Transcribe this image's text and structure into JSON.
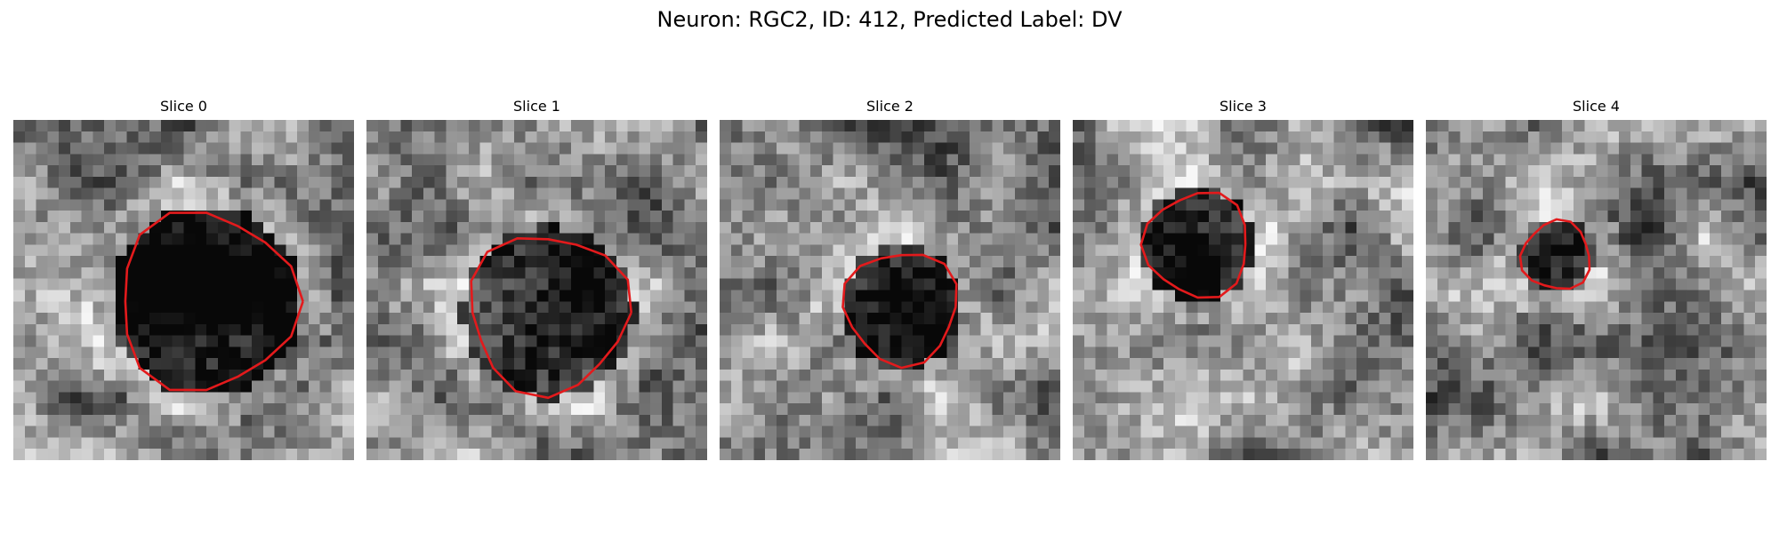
{
  "figure": {
    "title": "Neuron: RGC2, ID: 412, Predicted Label: DV",
    "colormap": "gray",
    "contour_color": "#e31a1c",
    "grid_size": 30
  },
  "slices": [
    {
      "title": "Slice 0",
      "seed": 11,
      "center": [
        16.5,
        15.5
      ],
      "radius": 8.5,
      "dark": 0.72
    },
    {
      "title": "Slice 1",
      "seed": 23,
      "center": [
        15.5,
        16.5
      ],
      "radius": 7.6,
      "dark": 0.55
    },
    {
      "title": "Slice 2",
      "seed": 37,
      "center": [
        15.5,
        16.0
      ],
      "radius": 5.4,
      "dark": 0.6
    },
    {
      "title": "Slice 3",
      "seed": 41,
      "center": [
        10.5,
        10.5
      ],
      "radius": 5.0,
      "dark": 0.75
    },
    {
      "title": "Slice 4",
      "seed": 59,
      "center": [
        11.0,
        11.5
      ],
      "radius": 3.3,
      "dark": 0.5
    }
  ]
}
